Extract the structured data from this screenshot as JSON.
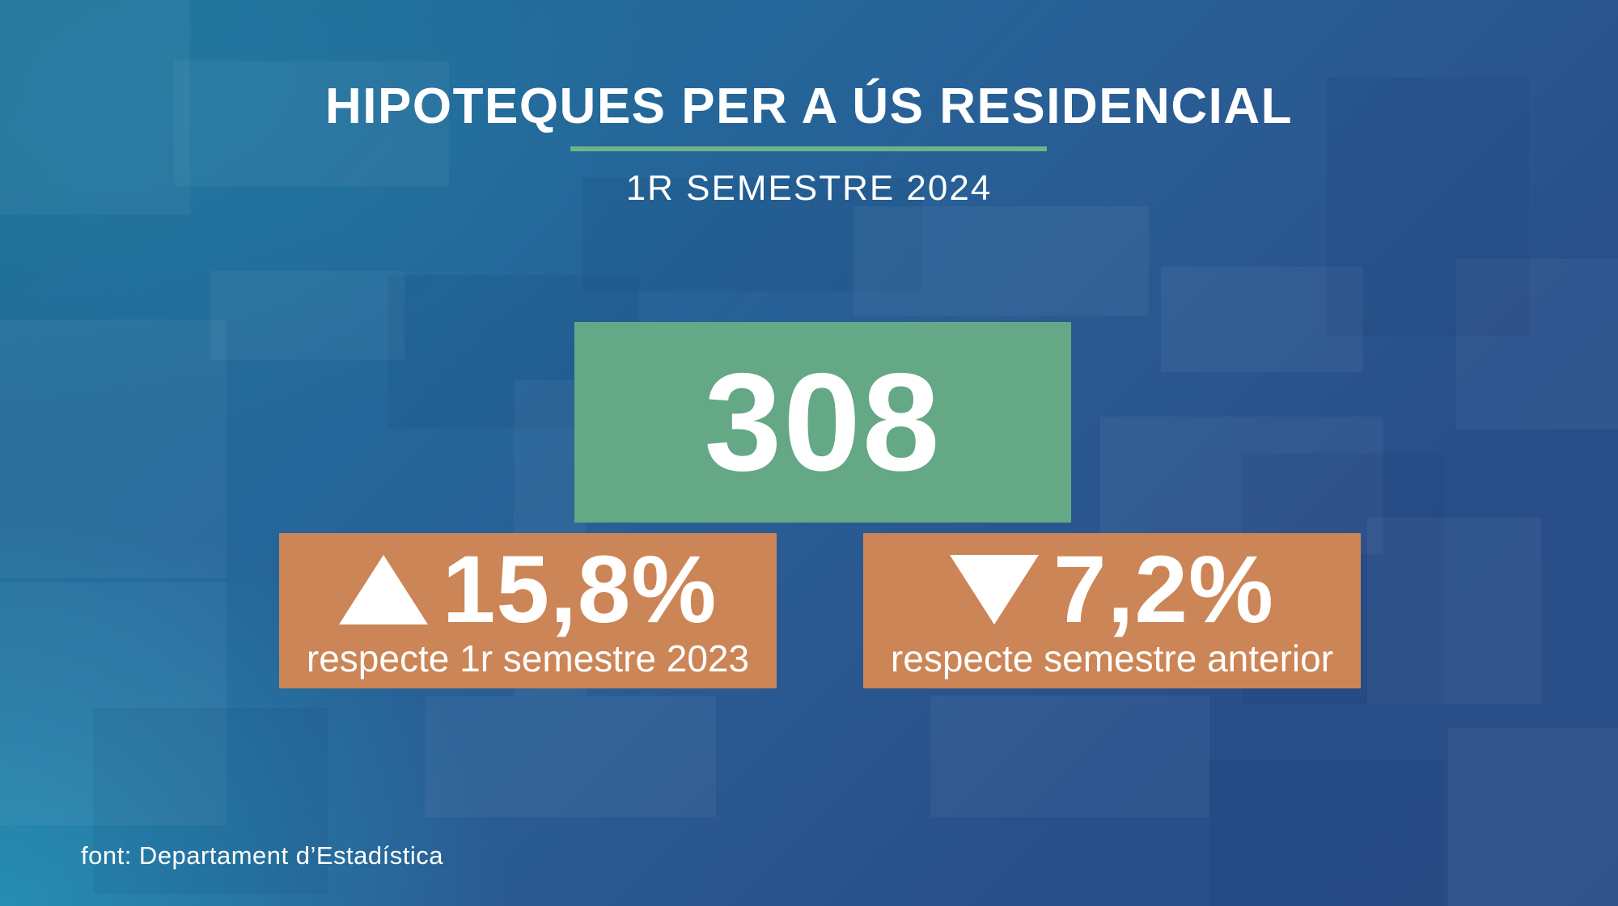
{
  "header": {
    "title": "HIPOTEQUES PER A ÚS RESIDENCIAL",
    "subtitle": "1R SEMESTRE 2024"
  },
  "total": {
    "value": "308"
  },
  "changes": [
    {
      "direction": "up",
      "icon": "triangle-up-icon",
      "value": "15,8%",
      "caption": "respecte 1r semestre 2023"
    },
    {
      "direction": "down",
      "icon": "triangle-down-icon",
      "value": "7,2%",
      "caption": "respecte semestre anterior"
    }
  ],
  "footer": {
    "source": "font: Departament d’Estadística"
  },
  "colors": {
    "total_box": "#64a885",
    "change_box": "#cc8556",
    "accent_rule": "#6fb487",
    "text": "#ffffff"
  }
}
